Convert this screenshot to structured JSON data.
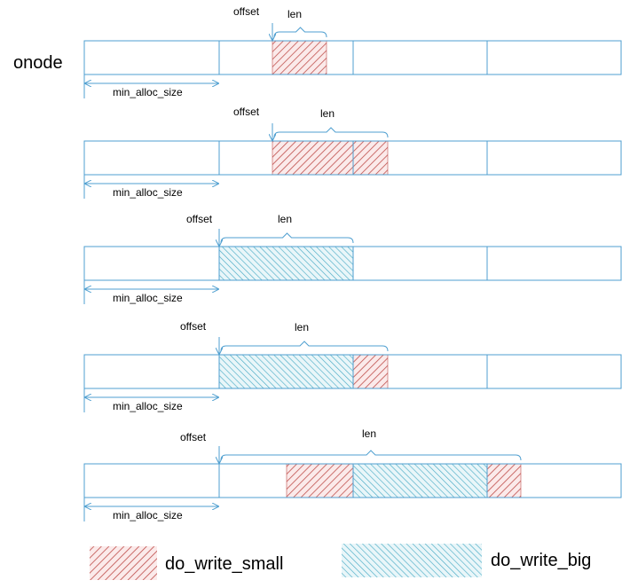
{
  "title": "onode",
  "labels": {
    "offset": "offset",
    "len": "len",
    "min_alloc_size": "min_alloc_size"
  },
  "legend": {
    "small": "do_write_small",
    "big": "do_write_big"
  },
  "colors": {
    "block_border": "#4f9fd0",
    "arrow": "#4f9fd0",
    "small_hatch": "#c0504d",
    "small_bg": "#fbeaea",
    "big_hatch": "#4bacc6",
    "big_bg": "#e9f6f9"
  }
}
